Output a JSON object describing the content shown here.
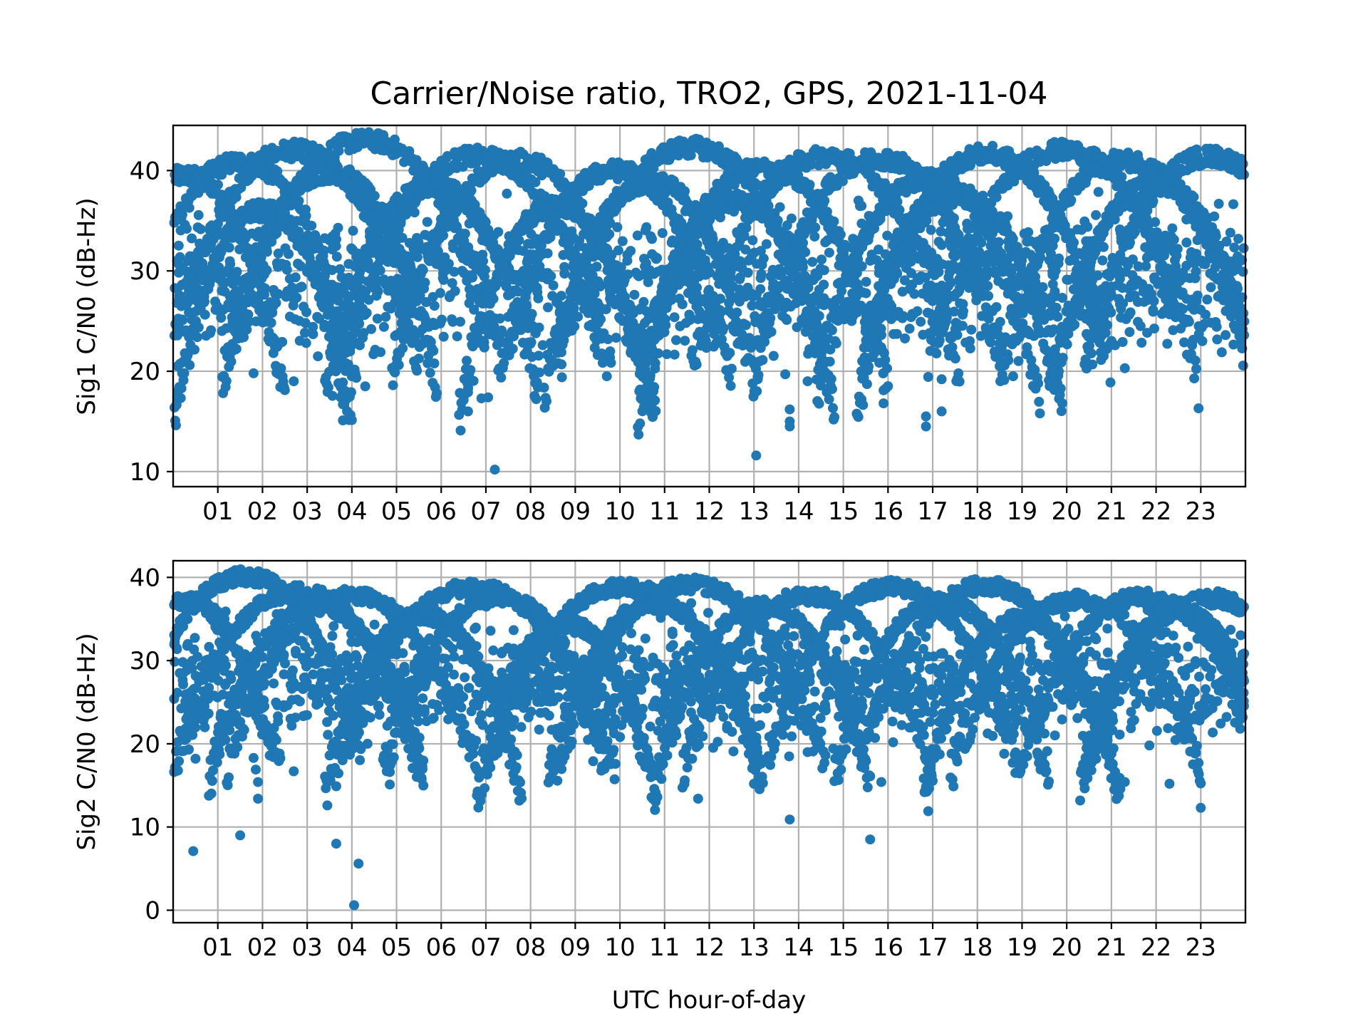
{
  "chart_data": {
    "type": "scatter",
    "title": "Carrier/Noise ratio, TRO2, GPS, 2021-11-04",
    "xlabel": "UTC hour-of-day",
    "x_ticks": [
      "01",
      "02",
      "03",
      "04",
      "05",
      "06",
      "07",
      "08",
      "09",
      "10",
      "11",
      "12",
      "13",
      "14",
      "15",
      "16",
      "17",
      "18",
      "19",
      "20",
      "21",
      "22",
      "23"
    ],
    "xlim": [
      0,
      24
    ],
    "point_color": "#1f77b4",
    "grid": true,
    "subplots": [
      {
        "ylabel": "Sig1 C/N0 (dB-Hz)",
        "ylim": [
          8.5,
          44.5
        ],
        "y_ticks": [
          "10",
          "20",
          "30",
          "40"
        ],
        "arcs": [
          {
            "peak_hour": 0.3,
            "peak": 39.5,
            "half_width": 2.2
          },
          {
            "peak_hour": 1.5,
            "peak": 40.8,
            "half_width": 2.6
          },
          {
            "peak_hour": 2.7,
            "peak": 42.0,
            "half_width": 2.8
          },
          {
            "peak_hour": 4.3,
            "peak": 43.0,
            "half_width": 3.0
          },
          {
            "peak_hour": 3.5,
            "peak": 39.8,
            "half_width": 2.4
          },
          {
            "peak_hour": 6.8,
            "peak": 41.4,
            "half_width": 3.0
          },
          {
            "peak_hour": 7.7,
            "peak": 41.0,
            "half_width": 2.8
          },
          {
            "peak_hour": 5.8,
            "peak": 38.5,
            "half_width": 2.4
          },
          {
            "peak_hour": 9.9,
            "peak": 40.0,
            "half_width": 2.6
          },
          {
            "peak_hour": 10.7,
            "peak": 38.8,
            "half_width": 2.4
          },
          {
            "peak_hour": 11.6,
            "peak": 42.3,
            "half_width": 3.0
          },
          {
            "peak_hour": 13.2,
            "peak": 40.2,
            "half_width": 2.8
          },
          {
            "peak_hour": 14.6,
            "peak": 41.4,
            "half_width": 3.0
          },
          {
            "peak_hour": 15.8,
            "peak": 41.2,
            "half_width": 2.8
          },
          {
            "peak_hour": 16.9,
            "peak": 39.2,
            "half_width": 2.5
          },
          {
            "peak_hour": 18.2,
            "peak": 41.6,
            "half_width": 2.8
          },
          {
            "peak_hour": 19.9,
            "peak": 42.0,
            "half_width": 3.0
          },
          {
            "peak_hour": 21.3,
            "peak": 41.0,
            "half_width": 2.8
          },
          {
            "peak_hour": 23.2,
            "peak": 41.4,
            "half_width": 2.8
          },
          {
            "peak_hour": 22.0,
            "peak": 38.6,
            "half_width": 2.4
          },
          {
            "peak_hour": 8.6,
            "peak": 36.5,
            "half_width": 2.2
          },
          {
            "peak_hour": 12.6,
            "peak": 37.0,
            "half_width": 2.2
          },
          {
            "peak_hour": 17.6,
            "peak": 37.5,
            "half_width": 2.3
          },
          {
            "peak_hour": 2.0,
            "peak": 36.0,
            "half_width": 2.0
          }
        ],
        "outliers": [
          {
            "x": 0.1,
            "y": 20.5
          },
          {
            "x": 1.8,
            "y": 19.8
          },
          {
            "x": 2.7,
            "y": 19.0
          },
          {
            "x": 3.7,
            "y": 18.8
          },
          {
            "x": 3.75,
            "y": 17.4
          },
          {
            "x": 3.8,
            "y": 16.7
          },
          {
            "x": 3.8,
            "y": 15.1
          },
          {
            "x": 4.3,
            "y": 18.5
          },
          {
            "x": 6.6,
            "y": 17.9
          },
          {
            "x": 6.6,
            "y": 16.0
          },
          {
            "x": 6.9,
            "y": 17.3
          },
          {
            "x": 7.05,
            "y": 17.4
          },
          {
            "x": 7.2,
            "y": 10.2
          },
          {
            "x": 8.7,
            "y": 19.4
          },
          {
            "x": 10.45,
            "y": 14.8
          },
          {
            "x": 13.05,
            "y": 11.6
          },
          {
            "x": 13.7,
            "y": 19.7
          },
          {
            "x": 13.8,
            "y": 16.2
          },
          {
            "x": 13.8,
            "y": 15.0
          },
          {
            "x": 13.8,
            "y": 14.5
          },
          {
            "x": 14.2,
            "y": 19.0
          },
          {
            "x": 15.9,
            "y": 18.1
          },
          {
            "x": 15.9,
            "y": 16.8
          },
          {
            "x": 16.85,
            "y": 15.5
          },
          {
            "x": 16.85,
            "y": 14.5
          },
          {
            "x": 17.2,
            "y": 16.0
          },
          {
            "x": 17.2,
            "y": 19.2
          },
          {
            "x": 22.95,
            "y": 16.3
          },
          {
            "x": 18.8,
            "y": 19.5
          },
          {
            "x": 21.3,
            "y": 20.3
          }
        ]
      },
      {
        "ylabel": "Sig2 C/N0 (dB-Hz)",
        "ylim": [
          -1.5,
          42.0
        ],
        "y_ticks": [
          "0",
          "10",
          "20",
          "30",
          "40"
        ],
        "arcs": [
          {
            "peak_hour": 0.2,
            "peak": 37.3,
            "half_width": 2.2
          },
          {
            "peak_hour": 1.6,
            "peak": 40.1,
            "half_width": 2.6
          },
          {
            "peak_hour": 2.8,
            "peak": 38.2,
            "half_width": 2.8
          },
          {
            "peak_hour": 4.0,
            "peak": 37.8,
            "half_width": 2.8
          },
          {
            "peak_hour": 3.2,
            "peak": 36.5,
            "half_width": 2.4
          },
          {
            "peak_hour": 6.7,
            "peak": 38.8,
            "half_width": 3.0
          },
          {
            "peak_hour": 7.3,
            "peak": 37.5,
            "half_width": 2.6
          },
          {
            "peak_hour": 5.6,
            "peak": 35.5,
            "half_width": 2.2
          },
          {
            "peak_hour": 10.1,
            "peak": 38.8,
            "half_width": 3.0
          },
          {
            "peak_hour": 11.6,
            "peak": 39.1,
            "half_width": 3.0
          },
          {
            "peak_hour": 10.8,
            "peak": 36.8,
            "half_width": 2.4
          },
          {
            "peak_hour": 14.2,
            "peak": 37.8,
            "half_width": 2.8
          },
          {
            "peak_hour": 13.2,
            "peak": 36.5,
            "half_width": 2.4
          },
          {
            "peak_hour": 16.1,
            "peak": 38.8,
            "half_width": 2.8
          },
          {
            "peak_hour": 18.2,
            "peak": 39.0,
            "half_width": 2.8
          },
          {
            "peak_hour": 17.2,
            "peak": 37.0,
            "half_width": 2.4
          },
          {
            "peak_hour": 20.2,
            "peak": 37.3,
            "half_width": 2.8
          },
          {
            "peak_hour": 21.7,
            "peak": 37.6,
            "half_width": 2.8
          },
          {
            "peak_hour": 23.2,
            "peak": 37.5,
            "half_width": 2.8
          },
          {
            "peak_hour": 22.5,
            "peak": 36.0,
            "half_width": 2.2
          },
          {
            "peak_hour": 8.8,
            "peak": 34.5,
            "half_width": 2.0
          },
          {
            "peak_hour": 19.0,
            "peak": 35.0,
            "half_width": 2.2
          }
        ],
        "outliers": [
          {
            "x": 0.1,
            "y": 20.2
          },
          {
            "x": 0.5,
            "y": 18.2
          },
          {
            "x": 0.45,
            "y": 7.1
          },
          {
            "x": 1.5,
            "y": 9.0
          },
          {
            "x": 1.8,
            "y": 18.3
          },
          {
            "x": 1.85,
            "y": 16.9
          },
          {
            "x": 1.9,
            "y": 15.4
          },
          {
            "x": 1.9,
            "y": 13.4
          },
          {
            "x": 2.7,
            "y": 16.7
          },
          {
            "x": 3.65,
            "y": 14.9
          },
          {
            "x": 3.65,
            "y": 8.0
          },
          {
            "x": 4.05,
            "y": 0.6
          },
          {
            "x": 4.15,
            "y": 5.6
          },
          {
            "x": 4.35,
            "y": 20.0
          },
          {
            "x": 4.85,
            "y": 16.6
          },
          {
            "x": 4.85,
            "y": 15.1
          },
          {
            "x": 8.7,
            "y": 19.4
          },
          {
            "x": 9.4,
            "y": 17.9
          },
          {
            "x": 9.6,
            "y": 17.3
          },
          {
            "x": 10.7,
            "y": 17.6
          },
          {
            "x": 11.45,
            "y": 15.6
          },
          {
            "x": 11.75,
            "y": 13.4
          },
          {
            "x": 13.0,
            "y": 15.2
          },
          {
            "x": 13.0,
            "y": 17.8
          },
          {
            "x": 13.8,
            "y": 10.9
          },
          {
            "x": 14.2,
            "y": 19.0
          },
          {
            "x": 15.6,
            "y": 8.5
          },
          {
            "x": 15.85,
            "y": 15.4
          },
          {
            "x": 16.9,
            "y": 11.9
          },
          {
            "x": 18.85,
            "y": 16.5
          },
          {
            "x": 18.6,
            "y": 18.8
          },
          {
            "x": 21.3,
            "y": 15.4
          },
          {
            "x": 21.85,
            "y": 19.8
          },
          {
            "x": 22.3,
            "y": 15.2
          },
          {
            "x": 22.95,
            "y": 17.7
          },
          {
            "x": 23.0,
            "y": 12.3
          }
        ]
      }
    ]
  }
}
